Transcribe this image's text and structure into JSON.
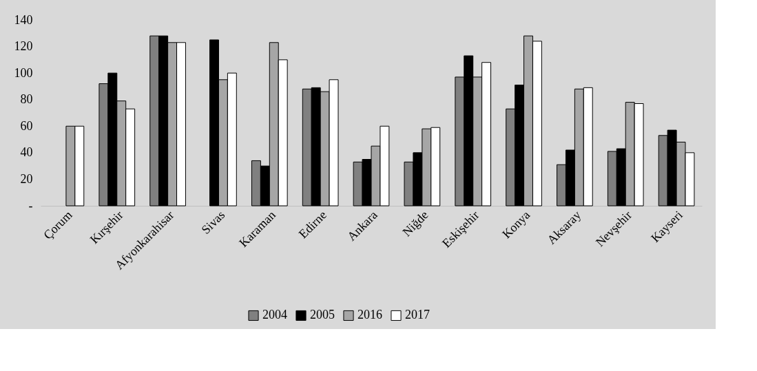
{
  "chart_data": {
    "type": "bar",
    "categories": [
      "Çorum",
      "Kırşehir",
      "Afyonkarahisar",
      "Sivas",
      "Karaman",
      "Edirne",
      "Ankara",
      "Niğde",
      "Eskişehir",
      "Konya",
      "Aksaray",
      "Nevşehir",
      "Kayseri"
    ],
    "series": [
      {
        "name": "2004",
        "color": "#808080",
        "values": [
          null,
          92,
          128,
          null,
          34,
          88,
          33,
          33,
          97,
          73,
          31,
          41,
          53
        ]
      },
      {
        "name": "2005",
        "color": "#000000",
        "values": [
          null,
          100,
          128,
          125,
          30,
          89,
          35,
          40,
          113,
          91,
          42,
          43,
          57
        ]
      },
      {
        "name": "2016",
        "color": "#a6a6a6",
        "values": [
          60,
          79,
          123,
          95,
          123,
          86,
          45,
          58,
          97,
          128,
          88,
          78,
          48
        ]
      },
      {
        "name": "2017",
        "color": "#ffffff",
        "values": [
          60,
          73,
          123,
          100,
          110,
          95,
          60,
          59,
          108,
          124,
          89,
          77,
          40
        ]
      }
    ],
    "ylim": [
      0,
      140
    ],
    "yticks": [
      {
        "value": 0,
        "label": "-"
      },
      20,
      40,
      60,
      80,
      100,
      120,
      140
    ],
    "legend": "bottom"
  }
}
